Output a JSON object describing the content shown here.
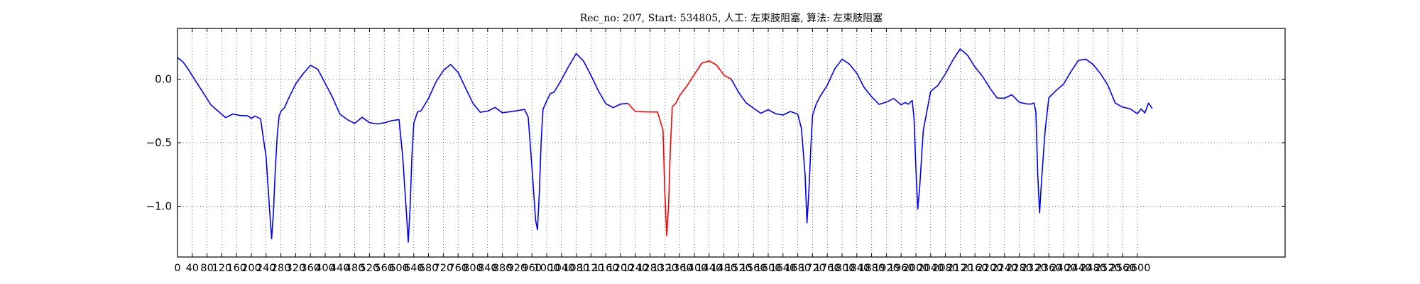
{
  "chart_data": {
    "type": "line",
    "title": "Rec_no: 207, Start: 534805, 人工: 左束肢阻塞, 算法: 左束肢阻塞",
    "xlabel": "",
    "ylabel": "",
    "xlim": [
      0,
      3000
    ],
    "ylim": [
      -1.4,
      0.4
    ],
    "grid": true,
    "grid_style": "dotted",
    "yticks": [
      0.0,
      -0.5,
      -1.0
    ],
    "ytick_labels": [
      "0.0",
      "−0.5",
      "−1.0"
    ],
    "xticks": [
      0,
      40,
      80,
      120,
      160,
      200,
      240,
      280,
      320,
      360,
      400,
      440,
      480,
      520,
      560,
      600,
      640,
      680,
      720,
      760,
      800,
      840,
      880,
      920,
      960,
      1000,
      1040,
      1080,
      1120,
      1160,
      1200,
      1240,
      1280,
      1320,
      1360,
      1400,
      1440,
      1480,
      1520,
      1560,
      1600,
      1640,
      1680,
      1720,
      1760,
      1800,
      1840,
      1880,
      1920,
      1960,
      2000,
      2040,
      2080,
      2120,
      2160,
      2200,
      2240,
      2280,
      2320,
      2360,
      2400,
      2440,
      2480,
      2520,
      2560,
      2600
    ],
    "xtick_labels": [
      "0",
      "40",
      "80",
      "120",
      "160",
      "200",
      "240",
      "280",
      "320",
      "360",
      "400",
      "440",
      "480",
      "520",
      "560",
      "600",
      "640",
      "680",
      "720",
      "760",
      "800",
      "840",
      "880",
      "920",
      "960",
      "1000",
      "1040",
      "1080",
      "1120",
      "1160",
      "1200",
      "1240",
      "1280",
      "1320",
      "1360",
      "1400",
      "1440",
      "1480",
      "1520",
      "1560",
      "1600",
      "1640",
      "1680",
      "1720",
      "1760",
      "1800",
      "1840",
      "1880",
      "1920",
      "1960",
      "2000",
      "2040",
      "2080",
      "2120",
      "2160",
      "2200",
      "2240",
      "2280",
      "2320",
      "2360",
      "2400",
      "2440",
      "2480",
      "2520",
      "2560",
      "2600"
    ],
    "x_data_end": 2640,
    "colors": {
      "signal": "#0000ff",
      "highlight": "#ff0000",
      "grid": "#555555",
      "axes": "#000000"
    },
    "series": [
      {
        "color": "#0000ff",
        "segment": "before-highlight",
        "x": [
          0,
          15,
          30,
          50,
          70,
          90,
          110,
          130,
          150,
          170,
          190,
          200,
          210,
          225,
          240,
          250,
          255,
          260,
          265,
          270,
          275,
          280,
          290,
          300,
          320,
          340,
          360,
          380,
          400,
          420,
          440,
          460,
          480,
          500,
          520,
          540,
          560,
          580,
          600,
          610,
          620,
          625,
          630,
          635,
          640,
          650,
          660,
          680,
          700,
          720,
          740,
          760,
          780,
          800,
          820,
          840,
          860,
          880,
          900,
          920,
          940,
          950,
          960,
          970,
          975,
          980,
          985,
          990,
          1000,
          1010,
          1020,
          1040,
          1060,
          1080,
          1100,
          1120,
          1140,
          1160,
          1180,
          1200,
          1220
        ],
        "y": [
          0.17,
          0.14,
          0.07,
          -0.03,
          -0.1,
          -0.2,
          -0.26,
          -0.29,
          -0.27,
          -0.29,
          -0.3,
          -0.3,
          -0.29,
          -0.32,
          -0.6,
          -1.05,
          -1.26,
          -1.05,
          -0.7,
          -0.45,
          -0.3,
          -0.24,
          -0.22,
          -0.16,
          -0.05,
          0.05,
          0.11,
          0.07,
          -0.02,
          -0.14,
          -0.28,
          -0.33,
          -0.34,
          -0.3,
          -0.35,
          -0.34,
          -0.34,
          -0.33,
          -0.33,
          -0.6,
          -1.05,
          -1.29,
          -1.0,
          -0.6,
          -0.35,
          -0.27,
          -0.24,
          -0.15,
          -0.03,
          0.08,
          0.12,
          0.05,
          -0.08,
          -0.18,
          -0.26,
          -0.26,
          -0.21,
          -0.26,
          -0.26,
          -0.26,
          -0.23,
          -0.3,
          -0.7,
          -1.1,
          -1.18,
          -0.9,
          -0.5,
          -0.23,
          -0.17,
          -0.12,
          -0.09,
          0.0,
          0.1,
          0.19,
          0.15,
          0.03,
          -0.1,
          -0.18,
          -0.22,
          -0.2,
          -0.19
        ]
      },
      {
        "color": "#ff0000",
        "segment": "highlight",
        "x": [
          1220,
          1240,
          1260,
          1280,
          1300,
          1315,
          1320,
          1325,
          1330,
          1335,
          1340,
          1350,
          1360,
          1380,
          1400,
          1420,
          1440,
          1460,
          1480,
          1500
        ],
        "y": [
          -0.19,
          -0.25,
          -0.26,
          -0.27,
          -0.25,
          -0.4,
          -0.9,
          -1.22,
          -1.0,
          -0.55,
          -0.23,
          -0.18,
          -0.13,
          -0.06,
          0.05,
          0.13,
          0.14,
          0.1,
          0.04,
          0.0
        ]
      },
      {
        "color": "#0000ff",
        "segment": "after-highlight",
        "x": [
          1500,
          1520,
          1540,
          1560,
          1580,
          1600,
          1620,
          1640,
          1660,
          1680,
          1690,
          1700,
          1705,
          1710,
          1715,
          1720,
          1730,
          1740,
          1760,
          1780,
          1800,
          1820,
          1840,
          1860,
          1880,
          1900,
          1920,
          1940,
          1960,
          1970,
          1980,
          1990,
          1995,
          2000,
          2005,
          2010,
          2020,
          2040,
          2060,
          2080,
          2100,
          2120,
          2140,
          2160,
          2180,
          2200,
          2220,
          2240,
          2260,
          2280,
          2300,
          2310,
          2320,
          2325,
          2330,
          2335,
          2340,
          2350,
          2360,
          2380,
          2400,
          2420,
          2440,
          2460,
          2480,
          2500,
          2520,
          2540,
          2560,
          2580,
          2600,
          2610,
          2620,
          2630,
          2640
        ],
        "y": [
          0.0,
          -0.1,
          -0.19,
          -0.24,
          -0.26,
          -0.24,
          -0.28,
          -0.27,
          -0.25,
          -0.28,
          -0.4,
          -0.75,
          -1.13,
          -0.9,
          -0.55,
          -0.28,
          -0.2,
          -0.15,
          -0.04,
          0.08,
          0.15,
          0.13,
          0.05,
          -0.07,
          -0.15,
          -0.19,
          -0.18,
          -0.16,
          -0.19,
          -0.18,
          -0.2,
          -0.18,
          -0.3,
          -0.7,
          -1.03,
          -0.85,
          -0.4,
          -0.1,
          -0.06,
          0.05,
          0.15,
          0.23,
          0.2,
          0.1,
          0.02,
          -0.08,
          -0.14,
          -0.15,
          -0.13,
          -0.17,
          -0.19,
          -0.2,
          -0.2,
          -0.25,
          -0.75,
          -1.06,
          -0.8,
          -0.4,
          -0.15,
          -0.1,
          -0.03,
          0.06,
          0.14,
          0.17,
          0.12,
          0.04,
          -0.06,
          -0.18,
          -0.22,
          -0.24,
          -0.26,
          -0.23,
          -0.27,
          -0.2,
          -0.23
        ]
      }
    ]
  }
}
